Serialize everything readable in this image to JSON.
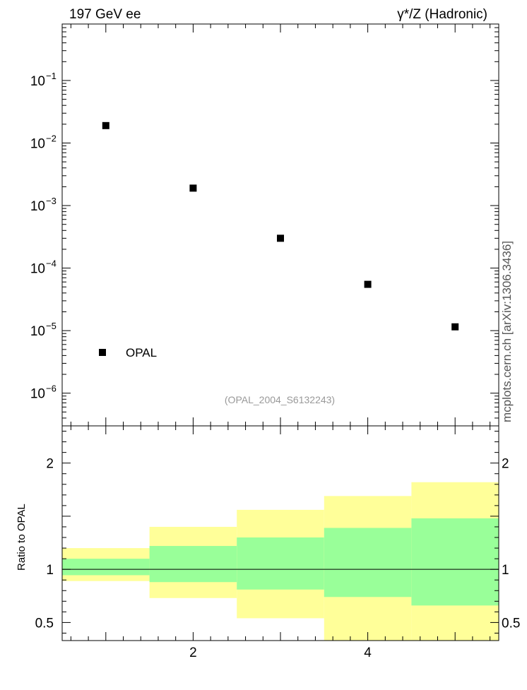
{
  "header": {
    "left_title": "197 GeV ee",
    "right_title": "γ*/Z (Hadronic)"
  },
  "watermark": "(OPAL_2004_S6132243)",
  "side_label": "mcplots.cern.ch [arXiv:1306.3436]",
  "colors": {
    "marker": "#000000",
    "band_outer": "#ffff99",
    "band_inner": "#99ff99",
    "watermark": "#999999"
  },
  "chart_data": [
    {
      "type": "scatter",
      "yscale": "log",
      "xlim": [
        0.5,
        5.5
      ],
      "ylim": [
        3e-07,
        0.8
      ],
      "yticks": [
        {
          "value": 1e-06,
          "base": "10",
          "exp": "−6"
        },
        {
          "value": 1e-05,
          "base": "10",
          "exp": "−5"
        },
        {
          "value": 0.0001,
          "base": "10",
          "exp": "−4"
        },
        {
          "value": 0.001,
          "base": "10",
          "exp": "−3"
        },
        {
          "value": 0.01,
          "base": "10",
          "exp": "−2"
        },
        {
          "value": 0.1,
          "base": "10",
          "exp": "−1"
        }
      ],
      "series": [
        {
          "name": "OPAL",
          "x": [
            1,
            2,
            3,
            4,
            5
          ],
          "y": [
            0.019,
            0.0019,
            0.0003,
            5.5e-05,
            1.15e-05
          ]
        }
      ],
      "legend": "bottom-left"
    },
    {
      "type": "area",
      "ylabel": "Ratio to OPAL",
      "xlim": [
        0.5,
        5.5
      ],
      "ylim": [
        0.33,
        2.35
      ],
      "yticks": [
        "0.5",
        "1",
        "2"
      ],
      "ytick_values": [
        0.5,
        1,
        2
      ],
      "xticks": [
        "2",
        "4"
      ],
      "xtick_values": [
        2,
        4
      ],
      "reference_line": 1,
      "bins": [
        {
          "x_low": 0.5,
          "x_high": 1.5,
          "inner": [
            0.945,
            1.1
          ],
          "outer": [
            0.89,
            1.2
          ]
        },
        {
          "x_low": 1.5,
          "x_high": 2.5,
          "inner": [
            0.88,
            1.22
          ],
          "outer": [
            0.73,
            1.4
          ]
        },
        {
          "x_low": 2.5,
          "x_high": 3.5,
          "inner": [
            0.81,
            1.3
          ],
          "outer": [
            0.54,
            1.56
          ]
        },
        {
          "x_low": 3.5,
          "x_high": 4.5,
          "inner": [
            0.74,
            1.39
          ],
          "outer": [
            0.33,
            1.69
          ]
        },
        {
          "x_low": 4.5,
          "x_high": 5.5,
          "inner": [
            0.66,
            1.48
          ],
          "outer": [
            0.33,
            1.82
          ]
        }
      ]
    }
  ]
}
